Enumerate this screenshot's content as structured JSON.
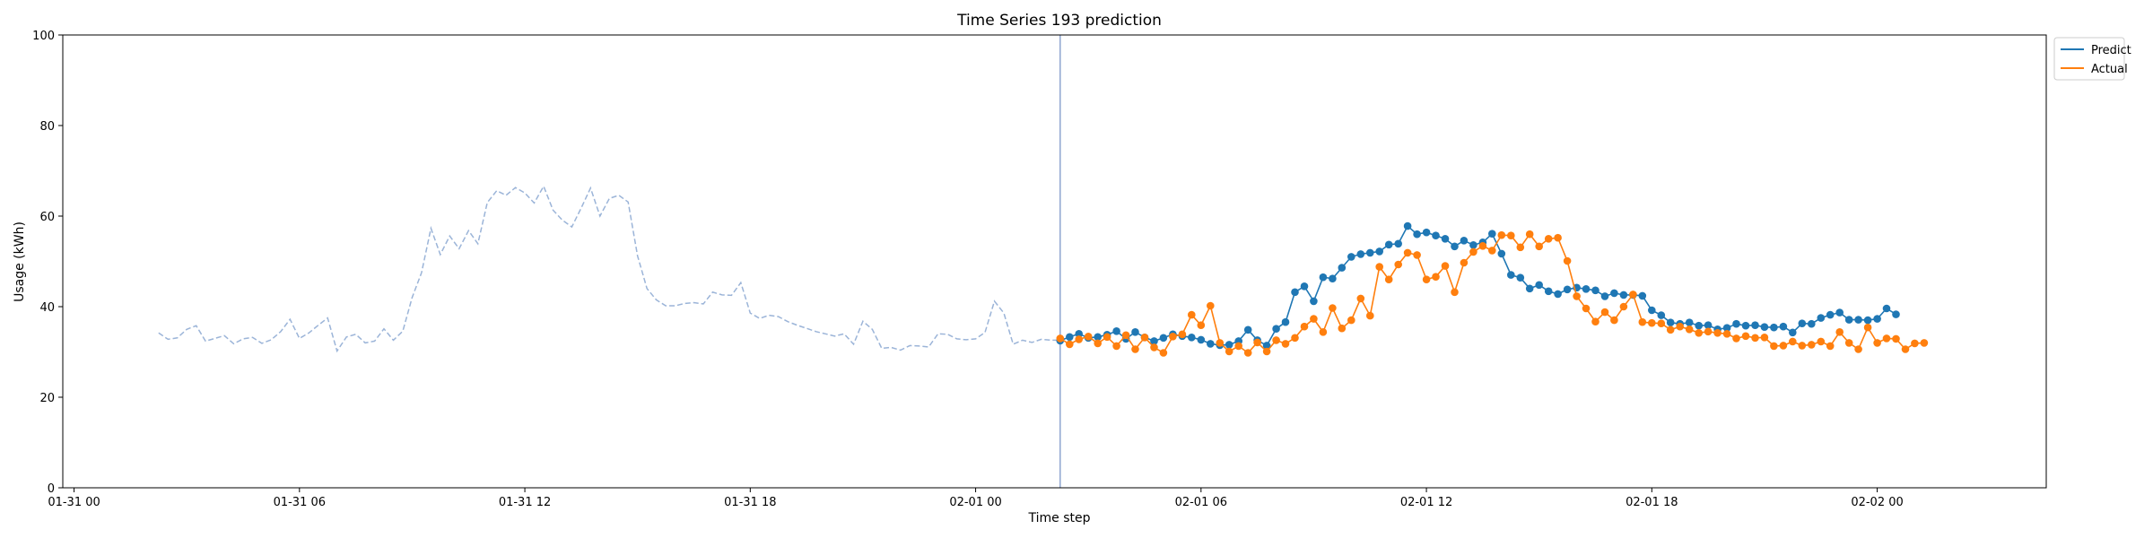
{
  "chart_data": {
    "type": "line",
    "title": "Time Series 193 prediction",
    "xlabel": "Time step",
    "ylabel": "Usage (kWh)",
    "ylim": [
      0,
      100
    ],
    "yticks": [
      0,
      20,
      40,
      60,
      80,
      100
    ],
    "xlim_hours": [
      -0.3,
      52.5
    ],
    "xticks": [
      {
        "label": "01-31 00",
        "hour": 0
      },
      {
        "label": "01-31 06",
        "hour": 6
      },
      {
        "label": "01-31 12",
        "hour": 12
      },
      {
        "label": "01-31 18",
        "hour": 18
      },
      {
        "label": "02-01 00",
        "hour": 24
      },
      {
        "label": "02-01 06",
        "hour": 30
      },
      {
        "label": "02-01 12",
        "hour": 36
      },
      {
        "label": "02-01 18",
        "hour": 42
      },
      {
        "label": "02-02 00",
        "hour": 48
      }
    ],
    "step_hours": 0.25,
    "forecast_start_hour": 26.25,
    "grid": false,
    "legend_position": "top-right",
    "colors": {
      "history": "#9bb4d8",
      "predict": "#1f77b4",
      "actual": "#ff7f0e",
      "divider": "#8ea6d0"
    },
    "history": {
      "start_hour": 2.25,
      "values": [
        34.2,
        32.8,
        33.1,
        35.0,
        35.8,
        32.4,
        33.0,
        33.6,
        31.8,
        32.9,
        33.2,
        31.9,
        32.7,
        34.5,
        37.2,
        33.0,
        34.2,
        35.9,
        37.5,
        30.2,
        33.3,
        33.9,
        32.0,
        32.4,
        35.1,
        32.6,
        34.6,
        42.0,
        47.5,
        57.3,
        51.5,
        55.6,
        52.8,
        56.8,
        53.9,
        63.0,
        65.6,
        64.6,
        66.3,
        65.1,
        62.9,
        66.6,
        61.3,
        59.1,
        57.6,
        61.8,
        66.2,
        60.0,
        63.9,
        64.6,
        63.1,
        51.2,
        44.0,
        41.5,
        40.2,
        40.2,
        40.7,
        40.9,
        40.6,
        43.2,
        42.6,
        42.5,
        45.3,
        38.6,
        37.4,
        38.1,
        37.8,
        36.7,
        35.9,
        35.2,
        34.5,
        34.0,
        33.5,
        34.0,
        31.7,
        36.8,
        35.0,
        30.8,
        31.0,
        30.4,
        31.4,
        31.3,
        31.1,
        34.0,
        33.9,
        32.9,
        32.7,
        32.9,
        34.3,
        41.2,
        38.6,
        31.7,
        32.6,
        32.1,
        32.8,
        32.6,
        32.6
      ]
    },
    "series": [
      {
        "name": "Predict",
        "x_start_hour": 26.25,
        "values": [
          32.5,
          33.3,
          34.0,
          33.1,
          33.3,
          33.8,
          34.6,
          32.9,
          34.4,
          33.2,
          32.4,
          33.1,
          33.9,
          33.5,
          33.2,
          32.7,
          31.8,
          31.5,
          31.6,
          32.4,
          34.9,
          32.6,
          31.4,
          35.1,
          36.6,
          43.2,
          44.5,
          41.2,
          46.5,
          46.2,
          48.6,
          51.0,
          51.6,
          51.9,
          52.2,
          53.7,
          53.9,
          57.8,
          56.0,
          56.4,
          55.7,
          55.0,
          53.3,
          54.6,
          53.6,
          54.2,
          56.1,
          51.7,
          47.0,
          46.4,
          44.0,
          44.8,
          43.4,
          42.8,
          43.8,
          44.2,
          43.9,
          43.6,
          42.3,
          43.0,
          42.6,
          42.6,
          42.4,
          39.2,
          38.1,
          36.5,
          36.2,
          36.5,
          35.8,
          35.9,
          35.0,
          35.3,
          36.2,
          35.8,
          35.9,
          35.5,
          35.4,
          35.6,
          34.3,
          36.3,
          36.2,
          37.5,
          38.2,
          38.7,
          37.1,
          37.1,
          37.0,
          37.3,
          39.6,
          38.3
        ]
      },
      {
        "name": "Actual",
        "x_start_hour": 26.25,
        "values": [
          33.0,
          31.7,
          32.8,
          33.4,
          31.9,
          33.3,
          31.3,
          33.7,
          30.6,
          33.2,
          31.0,
          29.8,
          33.4,
          33.9,
          38.2,
          35.9,
          40.2,
          32.0,
          30.1,
          31.3,
          29.8,
          32.1,
          30.1,
          32.6,
          31.8,
          33.1,
          35.6,
          37.3,
          34.4,
          39.7,
          35.2,
          37.0,
          41.8,
          38.0,
          48.8,
          46.0,
          49.3,
          51.9,
          51.4,
          46.0,
          46.6,
          49.0,
          43.2,
          49.7,
          52.1,
          53.4,
          52.4,
          55.8,
          55.7,
          53.1,
          56.0,
          53.3,
          55.0,
          55.2,
          50.1,
          42.3,
          39.6,
          36.7,
          38.8,
          37.0,
          40.0,
          42.7,
          36.6,
          36.4,
          36.3,
          34.9,
          35.6,
          35.0,
          34.2,
          34.5,
          34.2,
          34.0,
          33.0,
          33.5,
          33.1,
          33.2,
          31.3,
          31.4,
          32.3,
          31.4,
          31.6,
          32.3,
          31.3,
          34.4,
          32.0,
          30.6,
          35.4,
          32.0,
          33.0,
          32.9,
          30.6,
          31.9,
          32.0
        ]
      }
    ]
  }
}
